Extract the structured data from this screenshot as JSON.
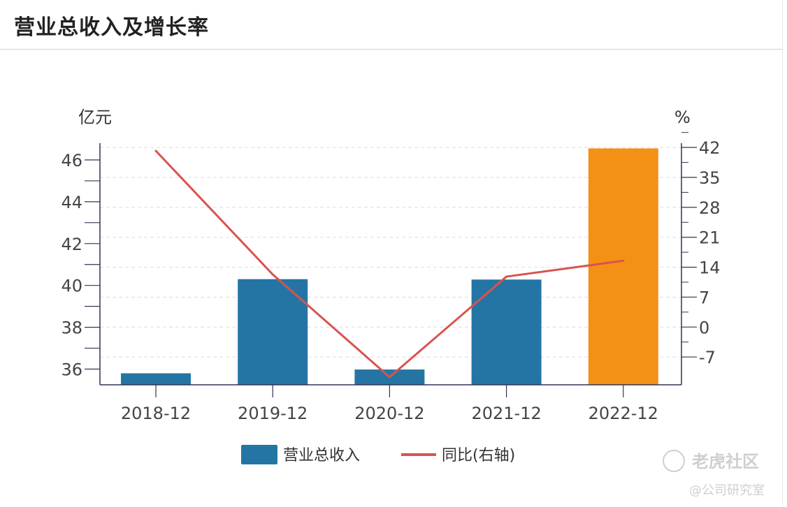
{
  "header": {
    "title": "营业总收入及增长率"
  },
  "watermark": {
    "brand": "老虎社区",
    "handle": "@公司研究室"
  },
  "chart_data": {
    "type": "bar",
    "title": "营业总收入及增长率",
    "categories": [
      "2018-12",
      "2019-12",
      "2020-12",
      "2021-12",
      "2022-12"
    ],
    "y_left_unit": "亿元",
    "y_right_unit": "%",
    "y_left_ticks": [
      "36",
      "38",
      "40",
      "42",
      "44",
      "46"
    ],
    "y_right_ticks": [
      "42",
      "35",
      "28",
      "21",
      "14",
      "7",
      "0",
      "-7"
    ],
    "ylim_left": [
      35.25,
      46.8
    ],
    "ylim_right": [
      -13.5,
      43
    ],
    "grid": true,
    "legend_position": "bottom",
    "series": [
      {
        "name": "营业总收入",
        "type": "bar",
        "axis": "left",
        "values": [
          35.8,
          40.3,
          35.98,
          40.28,
          46.55
        ],
        "colors": [
          "#2475a4",
          "#2475a4",
          "#2475a4",
          "#2475a4",
          "#f39016"
        ]
      },
      {
        "name": "同比(右轴)",
        "type": "line",
        "axis": "right",
        "color": "#d9534f",
        "values": [
          41.2,
          12.3,
          -11.7,
          11.8,
          15.5
        ]
      }
    ]
  },
  "colors": {
    "bar": "#2475a4",
    "highlight_bar": "#f39016",
    "line": "#d9534f",
    "axis": "#333355",
    "grid": "#d8dde3"
  }
}
